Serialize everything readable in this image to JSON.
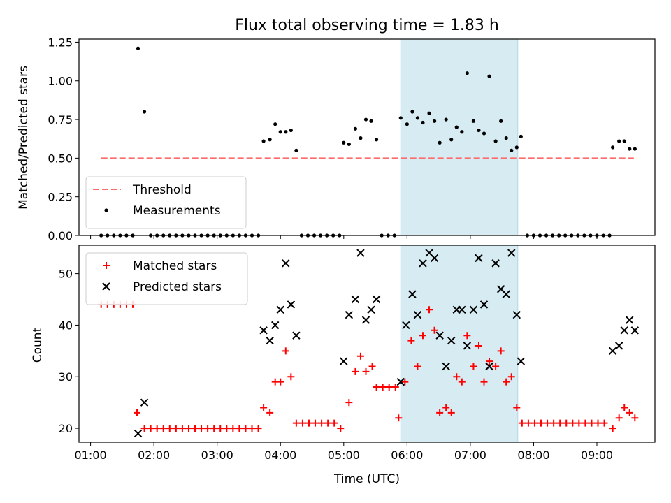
{
  "title": "Flux total observing time = 1.83 h",
  "colors": {
    "threshold": "#ff6b6b",
    "measurements": "#000000",
    "matched": "#ff0000",
    "predicted": "#000000",
    "highlight": "#add8e6"
  },
  "chart_data": [
    {
      "type": "scatter",
      "ylabel": "Matched/Predicted stars",
      "ylim": [
        0,
        1.27
      ],
      "y_ticks": [
        "0.00",
        "0.25",
        "0.50",
        "0.75",
        "1.00",
        "1.25"
      ],
      "y_tick_values": [
        0,
        0.25,
        0.5,
        0.75,
        1.0,
        1.25
      ],
      "highlight_span": [
        "05:54",
        "07:45"
      ],
      "legend_location": "lower-left",
      "threshold": {
        "name": "Threshold",
        "value": 0.5,
        "x_range": [
          "01:10",
          "09:35"
        ]
      },
      "series": [
        {
          "name": "Measurements",
          "points": [
            [
              "01:10",
              0
            ],
            [
              "01:16",
              0
            ],
            [
              "01:22",
              0
            ],
            [
              "01:28",
              0
            ],
            [
              "01:34",
              0
            ],
            [
              "01:40",
              0
            ],
            [
              "01:45",
              1.21
            ],
            [
              "01:51",
              0.8
            ],
            [
              "01:57",
              0
            ],
            [
              "02:03",
              0
            ],
            [
              "02:09",
              0
            ],
            [
              "02:15",
              0
            ],
            [
              "02:21",
              0
            ],
            [
              "02:27",
              0
            ],
            [
              "02:33",
              0
            ],
            [
              "02:39",
              0
            ],
            [
              "02:45",
              0
            ],
            [
              "02:51",
              0
            ],
            [
              "02:57",
              0
            ],
            [
              "03:03",
              0
            ],
            [
              "03:09",
              0
            ],
            [
              "03:15",
              0
            ],
            [
              "03:21",
              0
            ],
            [
              "03:27",
              0
            ],
            [
              "03:33",
              0
            ],
            [
              "03:39",
              0
            ],
            [
              "03:44",
              0.61
            ],
            [
              "03:50",
              0.62
            ],
            [
              "03:55",
              0.72
            ],
            [
              "04:00",
              0.67
            ],
            [
              "04:05",
              0.67
            ],
            [
              "04:10",
              0.68
            ],
            [
              "04:15",
              0.55
            ],
            [
              "04:20",
              0
            ],
            [
              "04:26",
              0
            ],
            [
              "04:32",
              0
            ],
            [
              "04:38",
              0
            ],
            [
              "04:44",
              0
            ],
            [
              "04:50",
              0
            ],
            [
              "04:56",
              0
            ],
            [
              "05:00",
              0.6
            ],
            [
              "05:05",
              0.59
            ],
            [
              "05:11",
              0.69
            ],
            [
              "05:16",
              0.63
            ],
            [
              "05:21",
              0.75
            ],
            [
              "05:26",
              0.74
            ],
            [
              "05:31",
              0.62
            ],
            [
              "05:36",
              0
            ],
            [
              "05:42",
              0
            ],
            [
              "05:48",
              0
            ],
            [
              "05:54",
              0.76
            ],
            [
              "06:00",
              0.72
            ],
            [
              "06:05",
              0.8
            ],
            [
              "06:10",
              0.76
            ],
            [
              "06:15",
              0.73
            ],
            [
              "06:21",
              0.79
            ],
            [
              "06:26",
              0.74
            ],
            [
              "06:31",
              0.6
            ],
            [
              "06:37",
              0.75
            ],
            [
              "06:42",
              0.62
            ],
            [
              "06:47",
              0.7
            ],
            [
              "06:52",
              0.67
            ],
            [
              "06:57",
              1.05
            ],
            [
              "07:03",
              0.74
            ],
            [
              "07:08",
              0.68
            ],
            [
              "07:13",
              0.66
            ],
            [
              "07:18",
              1.03
            ],
            [
              "07:24",
              0.61
            ],
            [
              "07:29",
              0.74
            ],
            [
              "07:34",
              0.63
            ],
            [
              "07:39",
              0.55
            ],
            [
              "07:44",
              0.57
            ],
            [
              "07:48",
              0.64
            ],
            [
              "07:54",
              0
            ],
            [
              "08:00",
              0
            ],
            [
              "08:06",
              0
            ],
            [
              "08:12",
              0
            ],
            [
              "08:18",
              0
            ],
            [
              "08:24",
              0
            ],
            [
              "08:30",
              0
            ],
            [
              "08:36",
              0
            ],
            [
              "08:42",
              0
            ],
            [
              "08:48",
              0
            ],
            [
              "08:54",
              0
            ],
            [
              "09:00",
              0
            ],
            [
              "09:06",
              0
            ],
            [
              "09:12",
              0
            ],
            [
              "09:15",
              0.57
            ],
            [
              "09:21",
              0.61
            ],
            [
              "09:26",
              0.61
            ],
            [
              "09:31",
              0.56
            ],
            [
              "09:36",
              0.56
            ]
          ]
        }
      ]
    },
    {
      "type": "scatter",
      "ylabel": "Count",
      "xlabel": "Time (UTC)",
      "ylim": [
        17.3,
        55.5
      ],
      "y_ticks": [
        "20",
        "30",
        "40",
        "50"
      ],
      "y_tick_values": [
        20,
        30,
        40,
        50
      ],
      "xlim": [
        "00:49",
        "09:55"
      ],
      "x_ticks": [
        "01:00",
        "02:00",
        "03:00",
        "04:00",
        "05:00",
        "06:00",
        "07:00",
        "08:00",
        "09:00"
      ],
      "highlight_span": [
        "05:54",
        "07:45"
      ],
      "legend_location": "upper-left",
      "series": [
        {
          "name": "Matched stars",
          "points": [
            [
              "01:10",
              44
            ],
            [
              "01:16",
              44
            ],
            [
              "01:22",
              44
            ],
            [
              "01:28",
              44
            ],
            [
              "01:34",
              44
            ],
            [
              "01:40",
              44
            ],
            [
              "01:44",
              23
            ],
            [
              "01:51",
              20
            ],
            [
              "01:57",
              20
            ],
            [
              "02:03",
              20
            ],
            [
              "02:09",
              20
            ],
            [
              "02:15",
              20
            ],
            [
              "02:21",
              20
            ],
            [
              "02:27",
              20
            ],
            [
              "02:33",
              20
            ],
            [
              "02:39",
              20
            ],
            [
              "02:45",
              20
            ],
            [
              "02:51",
              20
            ],
            [
              "02:57",
              20
            ],
            [
              "03:03",
              20
            ],
            [
              "03:09",
              20
            ],
            [
              "03:15",
              20
            ],
            [
              "03:21",
              20
            ],
            [
              "03:27",
              20
            ],
            [
              "03:33",
              20
            ],
            [
              "03:39",
              20
            ],
            [
              "03:44",
              24
            ],
            [
              "03:50",
              23
            ],
            [
              "03:55",
              29
            ],
            [
              "04:00",
              29
            ],
            [
              "04:05",
              35
            ],
            [
              "04:10",
              30
            ],
            [
              "04:15",
              21
            ],
            [
              "04:21",
              21
            ],
            [
              "04:27",
              21
            ],
            [
              "04:33",
              21
            ],
            [
              "04:39",
              21
            ],
            [
              "04:45",
              21
            ],
            [
              "04:51",
              21
            ],
            [
              "04:57",
              20
            ],
            [
              "05:05",
              25
            ],
            [
              "05:11",
              31
            ],
            [
              "05:16",
              34
            ],
            [
              "05:21",
              31
            ],
            [
              "05:27",
              32
            ],
            [
              "05:31",
              28
            ],
            [
              "05:37",
              28
            ],
            [
              "05:43",
              28
            ],
            [
              "05:49",
              28
            ],
            [
              "05:52",
              22
            ],
            [
              "05:58",
              29
            ],
            [
              "06:04",
              37
            ],
            [
              "06:10",
              32
            ],
            [
              "06:15",
              38
            ],
            [
              "06:21",
              43
            ],
            [
              "06:26",
              39
            ],
            [
              "06:31",
              23
            ],
            [
              "06:37",
              24
            ],
            [
              "06:42",
              23
            ],
            [
              "06:47",
              30
            ],
            [
              "06:52",
              29
            ],
            [
              "06:57",
              38
            ],
            [
              "07:03",
              32
            ],
            [
              "07:08",
              36
            ],
            [
              "07:13",
              29
            ],
            [
              "07:18",
              33
            ],
            [
              "07:24",
              32
            ],
            [
              "07:29",
              35
            ],
            [
              "07:34",
              29
            ],
            [
              "07:39",
              30
            ],
            [
              "07:44",
              24
            ],
            [
              "07:49",
              21
            ],
            [
              "07:55",
              21
            ],
            [
              "08:01",
              21
            ],
            [
              "08:07",
              21
            ],
            [
              "08:13",
              21
            ],
            [
              "08:19",
              21
            ],
            [
              "08:25",
              21
            ],
            [
              "08:31",
              21
            ],
            [
              "08:37",
              21
            ],
            [
              "08:43",
              21
            ],
            [
              "08:49",
              21
            ],
            [
              "08:55",
              21
            ],
            [
              "09:01",
              21
            ],
            [
              "09:07",
              21
            ],
            [
              "09:15",
              20
            ],
            [
              "09:21",
              22
            ],
            [
              "09:26",
              24
            ],
            [
              "09:31",
              23
            ],
            [
              "09:36",
              22
            ]
          ]
        },
        {
          "name": "Predicted stars",
          "points": [
            [
              "01:45",
              19
            ],
            [
              "01:51",
              25
            ],
            [
              "03:44",
              39
            ],
            [
              "03:50",
              37
            ],
            [
              "03:55",
              40
            ],
            [
              "04:00",
              43
            ],
            [
              "04:05",
              52
            ],
            [
              "04:10",
              44
            ],
            [
              "04:15",
              38
            ],
            [
              "05:00",
              33
            ],
            [
              "05:05",
              42
            ],
            [
              "05:11",
              45
            ],
            [
              "05:16",
              54
            ],
            [
              "05:21",
              41
            ],
            [
              "05:26",
              43
            ],
            [
              "05:31",
              45
            ],
            [
              "05:54",
              29
            ],
            [
              "05:59",
              40
            ],
            [
              "06:05",
              46
            ],
            [
              "06:10",
              42
            ],
            [
              "06:15",
              52
            ],
            [
              "06:21",
              54
            ],
            [
              "06:26",
              53
            ],
            [
              "06:31",
              38
            ],
            [
              "06:37",
              32
            ],
            [
              "06:42",
              37
            ],
            [
              "06:47",
              43
            ],
            [
              "06:52",
              43
            ],
            [
              "06:57",
              36
            ],
            [
              "07:03",
              43
            ],
            [
              "07:08",
              53
            ],
            [
              "07:13",
              44
            ],
            [
              "07:18",
              32
            ],
            [
              "07:24",
              52
            ],
            [
              "07:29",
              47
            ],
            [
              "07:34",
              46
            ],
            [
              "07:39",
              54
            ],
            [
              "07:44",
              42
            ],
            [
              "07:48",
              33
            ],
            [
              "09:15",
              35
            ],
            [
              "09:21",
              36
            ],
            [
              "09:26",
              39
            ],
            [
              "09:31",
              41
            ],
            [
              "09:36",
              39
            ]
          ]
        }
      ]
    }
  ]
}
